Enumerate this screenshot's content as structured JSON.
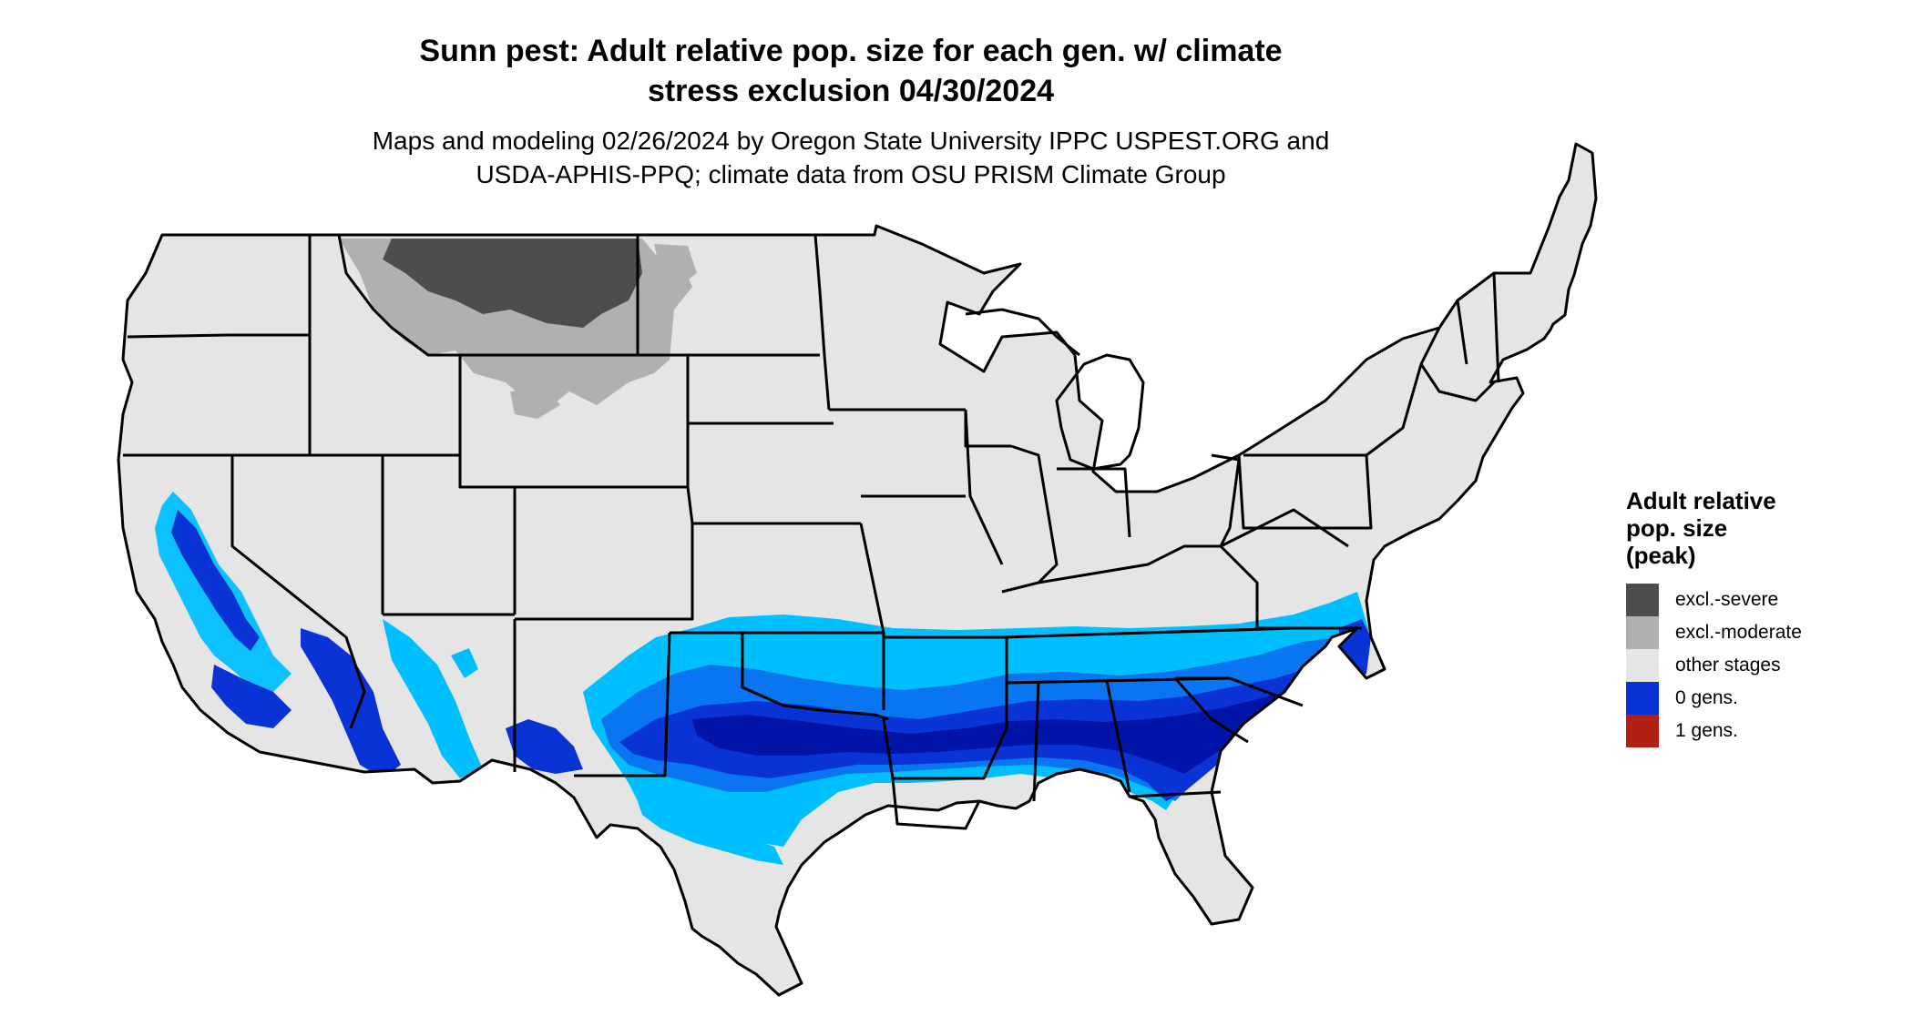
{
  "title": {
    "line1": "Sunn pest: Adult relative pop. size for each gen. w/ climate",
    "line2": "stress exclusion 04/30/2024"
  },
  "subtitle": {
    "line1": "Maps and modeling 02/26/2024 by Oregon State University IPPC USPEST.ORG and",
    "line2": "USDA-APHIS-PPQ; climate data from OSU PRISM Climate Group"
  },
  "legend": {
    "title_lines": [
      "Adult relative",
      "pop. size",
      "(peak)"
    ],
    "items": [
      {
        "label": "excl.-severe",
        "color": "#4d4d4d"
      },
      {
        "label": "excl.-moderate",
        "color": "#b0b0b0"
      },
      {
        "label": "other stages",
        "color": "#e5e5e5"
      },
      {
        "label": "0 gens.",
        "color": "#0a33d6"
      },
      {
        "label": "1 gens.",
        "color": "#b22014"
      }
    ]
  },
  "map": {
    "region": "Contiguous United States",
    "colors": {
      "land": "#e5e5e5",
      "border": "#000000",
      "excl_severe": "#4d4d4d",
      "excl_moderate": "#b0b0b0",
      "zero_gens_light": "#00bfff",
      "zero_gens_mid": "#0a75f0",
      "zero_gens_dark": "#0a33d6",
      "zero_gens_deep": "#0014a8"
    }
  }
}
